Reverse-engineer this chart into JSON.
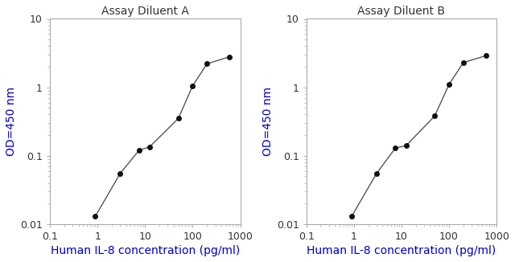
{
  "left_title": "Assay Diluent A",
  "right_title": "Assay Diluent B",
  "xlabel": "Human IL-8 concentration (pg/ml)",
  "ylabel": "OD=450 nm",
  "xlim": [
    0.1,
    1000
  ],
  "ylim": [
    0.01,
    10
  ],
  "left_x": [
    0.9,
    3.0,
    7.5,
    12.5,
    50,
    100,
    200,
    600
  ],
  "left_y": [
    0.013,
    0.055,
    0.12,
    0.135,
    0.35,
    1.05,
    2.2,
    2.8
  ],
  "right_x": [
    0.9,
    3.0,
    7.5,
    12.5,
    50,
    100,
    200,
    600
  ],
  "right_y": [
    0.013,
    0.055,
    0.13,
    0.14,
    0.38,
    1.1,
    2.3,
    2.9
  ],
  "line_color": "#555555",
  "marker_color": "#111111",
  "title_color": "#333333",
  "label_color": "#0000bb",
  "tick_label_color": "#333333",
  "spine_color": "#aaaaaa",
  "background": "#ffffff",
  "title_fontsize": 10,
  "label_fontsize": 10,
  "tick_fontsize": 9,
  "marker_size": 4,
  "line_width": 1.0,
  "x_tick_labels": [
    "0.1",
    "1",
    "10",
    "100",
    "1000"
  ],
  "x_tick_values": [
    0.1,
    1,
    10,
    100,
    1000
  ],
  "y_tick_labels": [
    "0.01",
    "0.1",
    "1",
    "10"
  ],
  "y_tick_values": [
    0.01,
    0.1,
    1,
    10
  ]
}
